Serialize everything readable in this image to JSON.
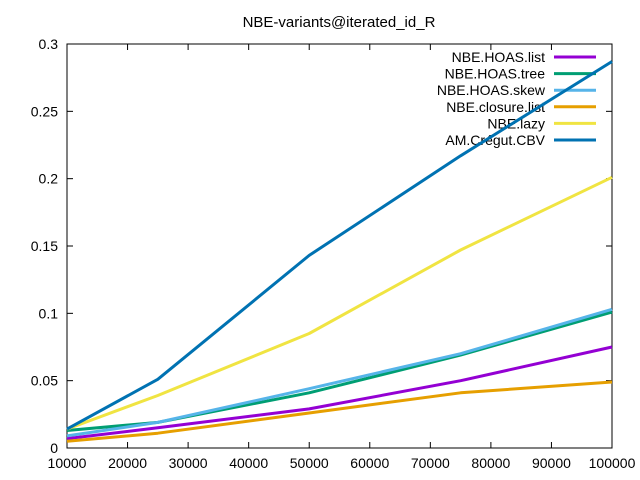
{
  "chart_data": {
    "type": "line",
    "title": "NBE-variants@iterated_id_R",
    "xlabel": "",
    "ylabel": "",
    "xlim": [
      10000,
      100000
    ],
    "ylim": [
      0,
      0.3
    ],
    "x_ticks": [
      "10000",
      "20000",
      "30000",
      "40000",
      "50000",
      "60000",
      "70000",
      "80000",
      "90000",
      "100000"
    ],
    "y_ticks": [
      "0",
      "0.05",
      "0.1",
      "0.15",
      "0.2",
      "0.25",
      "0.3"
    ],
    "grid": false,
    "legend_position": "top-right",
    "x": [
      10000,
      25000,
      50000,
      75000,
      100000
    ],
    "series": [
      {
        "name": "NBE.HOAS.list",
        "color": "#9400d3",
        "values": [
          0.007,
          0.015,
          0.029,
          0.05,
          0.075
        ]
      },
      {
        "name": "NBE.HOAS.tree",
        "color": "#009e73",
        "values": [
          0.013,
          0.019,
          0.041,
          0.069,
          0.101
        ]
      },
      {
        "name": "NBE.HOAS.skew",
        "color": "#56b4e9",
        "values": [
          0.009,
          0.019,
          0.044,
          0.07,
          0.103
        ]
      },
      {
        "name": "NBE.closure.list",
        "color": "#e69f00",
        "values": [
          0.005,
          0.011,
          0.026,
          0.041,
          0.049
        ]
      },
      {
        "name": "NBE.lazy",
        "color": "#f0e442",
        "values": [
          0.014,
          0.039,
          0.085,
          0.147,
          0.201
        ]
      },
      {
        "name": "AM.Crégut.CBV",
        "color": "#0072b2",
        "values": [
          0.014,
          0.051,
          0.143,
          0.217,
          0.287
        ]
      }
    ]
  }
}
